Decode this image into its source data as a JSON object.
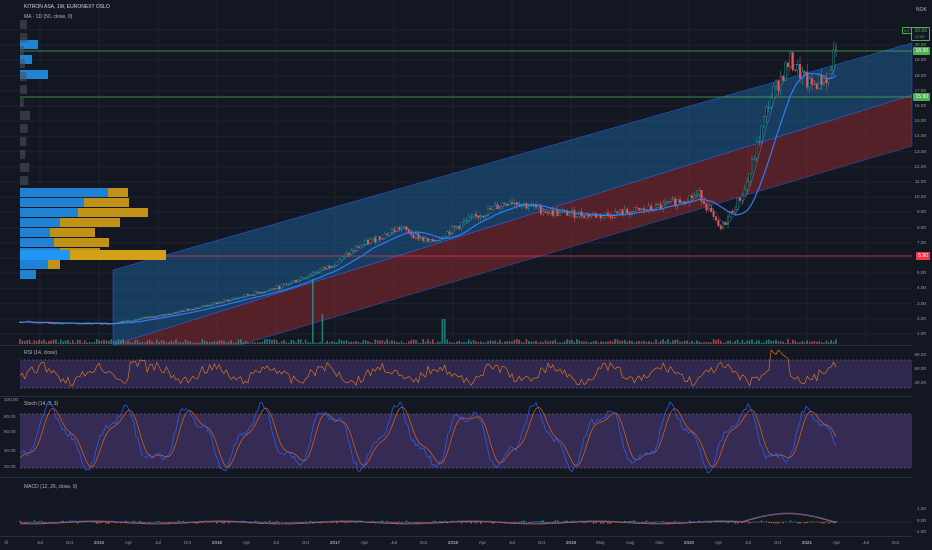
{
  "header": {
    "symbol": "KITRON ASA, 1W, EURONEXT OSLO",
    "ma_label": "MA · 1D (50, close, 0)"
  },
  "price_axis": {
    "currency": "NOK",
    "ticks": [
      "21.00",
      "20.00",
      "19.00",
      "18.00",
      "17.00",
      "16.00",
      "15.00",
      "14.00",
      "13.00",
      "12.00",
      "11.00",
      "10.00",
      "9.00",
      "8.00",
      "7.00",
      "6.00",
      "5.00",
      "4.00",
      "3.00",
      "2.00",
      "1.00"
    ]
  },
  "price_labels": {
    "current": "20.50",
    "current_sub": "22:05",
    "resistance": "18.30",
    "support": "15.90",
    "poc": "5.90",
    "current_tag": "KIT"
  },
  "colors": {
    "bg": "#131722",
    "up": "#26a69a",
    "down": "#ef5350",
    "channel_upper": "#1e6aa8",
    "channel_lower": "#8b2a2e",
    "ma": "#2e7cf6",
    "rsi": "#f57f17",
    "stoch_k": "#2962ff",
    "stoch_d": "#ff6d00",
    "level_line": "#4caf50",
    "poc_line": "#f23645",
    "vp_blue": "#2196f3",
    "vp_gold": "#d4a017"
  },
  "rsi": {
    "label": "RSI (14, close)",
    "ticks": [
      "80.00",
      "60.00",
      "40.00"
    ]
  },
  "stoch": {
    "label": "Stoch (14, 3, 3)",
    "ticks": [
      "100.00",
      "80.00",
      "60.00",
      "40.00",
      "20.00"
    ]
  },
  "macd": {
    "label": "MACD (12, 26, close, 9)",
    "ticks": [
      "1.00",
      "0.00",
      "-1.00"
    ]
  },
  "time_axis": [
    {
      "label": "Jul",
      "bold": false
    },
    {
      "label": "Oct",
      "bold": false
    },
    {
      "label": "2015",
      "bold": true
    },
    {
      "label": "Apr",
      "bold": false
    },
    {
      "label": "Jul",
      "bold": false
    },
    {
      "label": "Oct",
      "bold": false
    },
    {
      "label": "2016",
      "bold": true
    },
    {
      "label": "Apr",
      "bold": false
    },
    {
      "label": "Jul",
      "bold": false
    },
    {
      "label": "Oct",
      "bold": false
    },
    {
      "label": "2017",
      "bold": true
    },
    {
      "label": "Apr",
      "bold": false
    },
    {
      "label": "Jul",
      "bold": false
    },
    {
      "label": "Oct",
      "bold": false
    },
    {
      "label": "2018",
      "bold": true
    },
    {
      "label": "Apr",
      "bold": false
    },
    {
      "label": "Jul",
      "bold": false
    },
    {
      "label": "Oct",
      "bold": false
    },
    {
      "label": "2019",
      "bold": true
    },
    {
      "label": "May",
      "bold": false
    },
    {
      "label": "Aug",
      "bold": false
    },
    {
      "label": "Nov",
      "bold": false
    },
    {
      "label": "2020",
      "bold": true
    },
    {
      "label": "Apr",
      "bold": false
    },
    {
      "label": "Jul",
      "bold": false
    },
    {
      "label": "Oct",
      "bold": false
    },
    {
      "label": "2021",
      "bold": true
    },
    {
      "label": "Apr",
      "bold": false
    },
    {
      "label": "Jul",
      "bold": false
    },
    {
      "label": "Oct",
      "bold": false
    }
  ]
}
